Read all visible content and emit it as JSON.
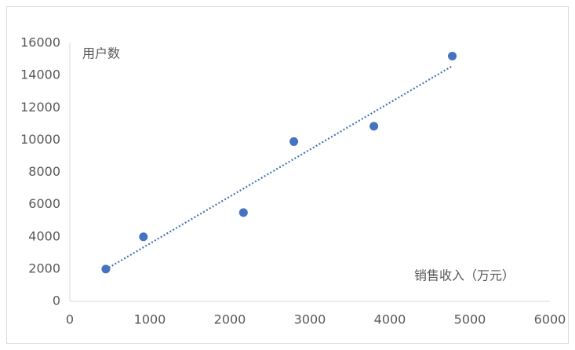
{
  "chart_data": {
    "type": "scatter",
    "x_label": "销售收入（万元）",
    "y_label": "用户数",
    "x": [
      450,
      920,
      2170,
      2800,
      3800,
      4780
    ],
    "values": [
      2000,
      4000,
      5500,
      9900,
      10850,
      15200
    ],
    "color": "#4472c4",
    "trendline": true,
    "xlim": [
      0,
      6000
    ],
    "xticks": [
      0,
      1000,
      2000,
      3000,
      4000,
      5000,
      6000
    ],
    "ylim": [
      0,
      16000
    ],
    "yticks": [
      0,
      2000,
      4000,
      6000,
      8000,
      10000,
      12000,
      14000,
      16000
    ],
    "grid": false
  }
}
